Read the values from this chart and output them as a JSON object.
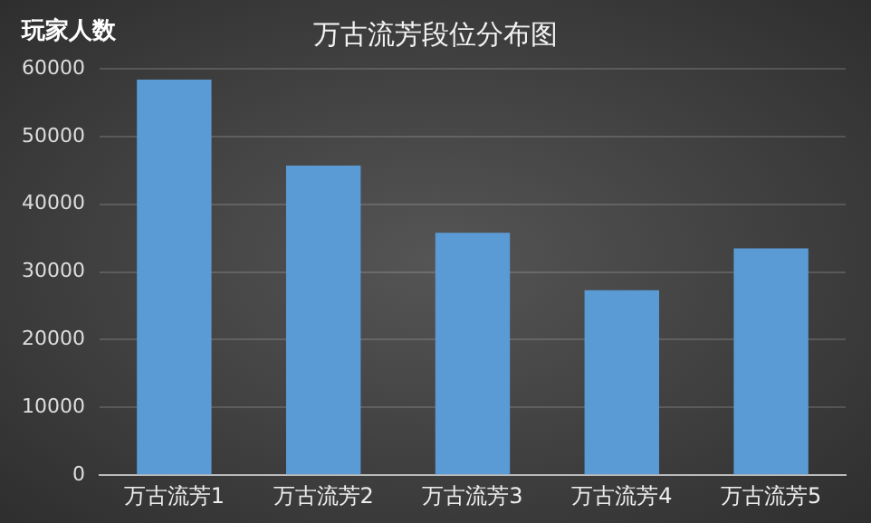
{
  "chart_data": {
    "type": "bar",
    "title": "万古流芳段位分布图",
    "ylabel": "玩家人数",
    "categories": [
      "万古流芳1",
      "万古流芳2",
      "万古流芳3",
      "万古流芳4",
      "万古流芳5"
    ],
    "values": [
      58400,
      45700,
      35800,
      27300,
      33500
    ],
    "color": "#5b9bd5",
    "ylim": [
      0,
      60000
    ],
    "yticks": [
      0,
      10000,
      20000,
      30000,
      40000,
      50000,
      60000
    ],
    "grid": "y"
  }
}
